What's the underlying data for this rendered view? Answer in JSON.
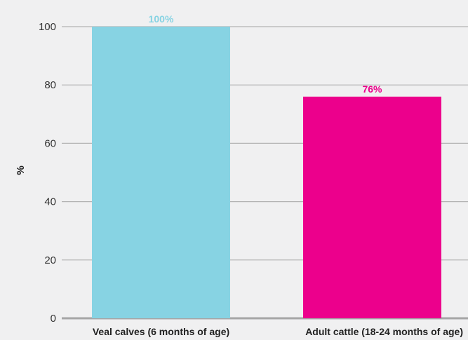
{
  "chart_data": {
    "type": "bar",
    "categories": [
      "Veal calves (6 months of age)",
      "Adult cattle (18-24 months of age)"
    ],
    "values": [
      100,
      76
    ],
    "data_labels": [
      "100%",
      "76%"
    ],
    "title": "",
    "xlabel": "",
    "ylabel": "%",
    "ylim": [
      0,
      100
    ],
    "yticks": [
      0,
      20,
      40,
      60,
      80,
      100
    ],
    "grid": true,
    "bar_colors": [
      "#87d3e3",
      "#ec008c"
    ],
    "grid_color": "#b3b3b3",
    "axis_color": "#a6a6a6"
  }
}
